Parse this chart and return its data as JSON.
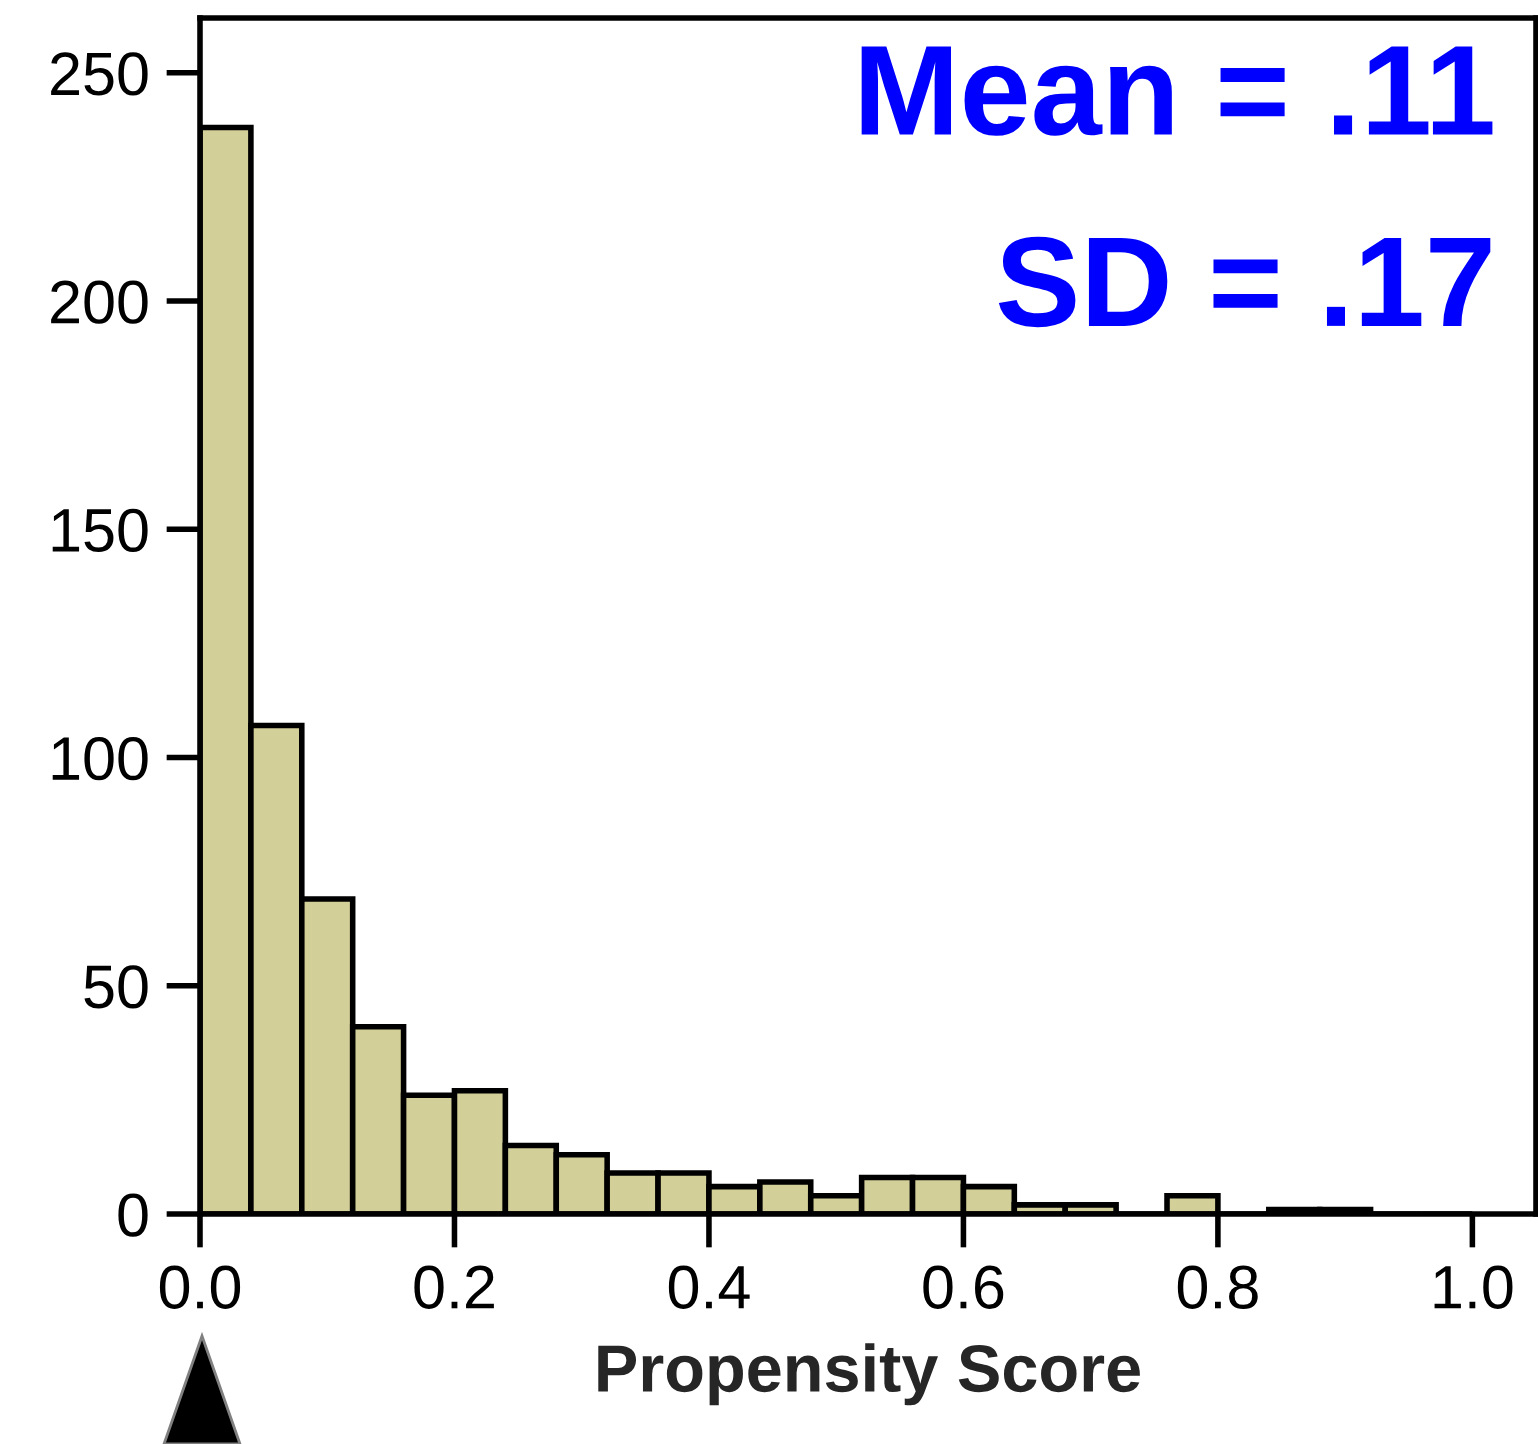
{
  "chart_data": {
    "type": "histogram",
    "xlabel": "Propensity Score",
    "bins": [
      0.0,
      0.04,
      0.08,
      0.12,
      0.16,
      0.2,
      0.24,
      0.28,
      0.32,
      0.36,
      0.4,
      0.44,
      0.48,
      0.52,
      0.56,
      0.6,
      0.64,
      0.68,
      0.72,
      0.76,
      0.8,
      0.84,
      0.88,
      0.92,
      0.96,
      1.0
    ],
    "values": [
      238,
      107,
      69,
      41,
      26,
      27,
      15,
      13,
      9,
      9,
      6,
      7,
      4,
      8,
      8,
      6,
      2,
      2,
      0,
      4,
      0,
      1,
      1,
      0,
      0
    ],
    "color": "#d3cf98",
    "annotations": [
      "Mean = .11",
      "SD = .17"
    ],
    "xlim": [
      0,
      1.05
    ],
    "ylim": [
      0,
      262
    ],
    "xticks": [
      {
        "value": 0.0,
        "label": "0.0"
      },
      0.2,
      0.4,
      0.6,
      0.8,
      {
        "value": 1.0,
        "label": "1.0"
      }
    ],
    "yticks": [
      0,
      50,
      100,
      150,
      200,
      250
    ],
    "grid": false,
    "legend": false
  }
}
